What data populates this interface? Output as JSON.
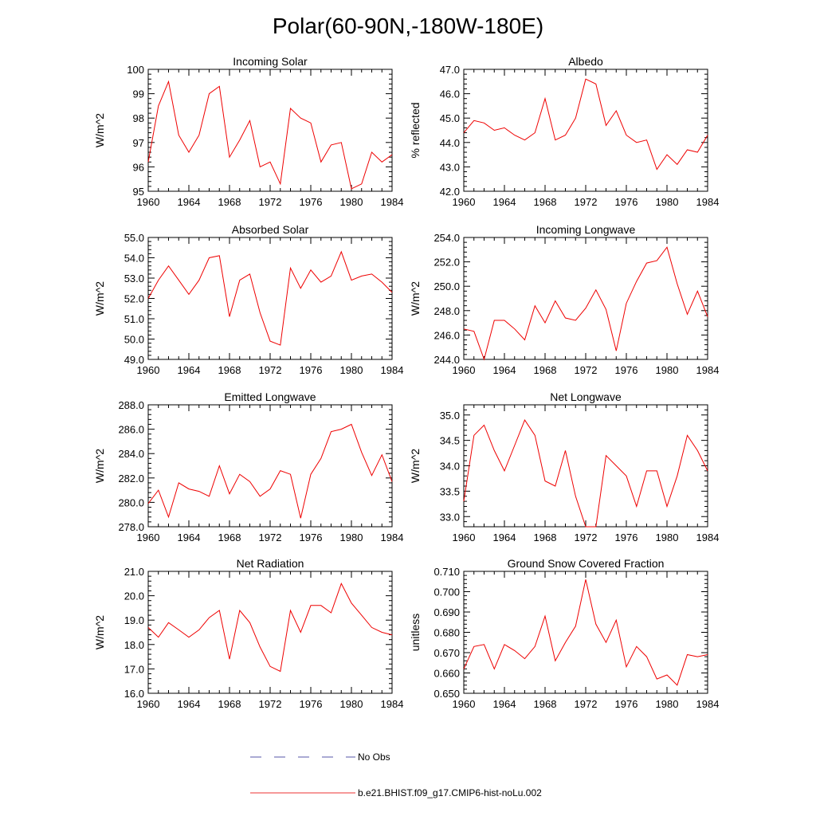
{
  "figure": {
    "title": "Polar(60-90N,-180W-180E)"
  },
  "legend": [
    {
      "label": "No Obs",
      "color": "#5555aa",
      "dashed": true
    },
    {
      "label": "b.e21.BHIST.f09_g17.CMIP6-hist-noLu.002",
      "color": "#ee3333",
      "dashed": false
    }
  ],
  "colors": {
    "series": "#ee0000",
    "obs": "#5555aa"
  },
  "chart_data": [
    {
      "type": "line",
      "title": "Incoming Solar",
      "ylabel": "W/m^2",
      "xlim": [
        1960,
        1984
      ],
      "ylim": [
        95,
        100
      ],
      "xticks": [
        1960,
        1964,
        1968,
        1972,
        1976,
        1980,
        1984
      ],
      "yticks": [
        95,
        96,
        97,
        98,
        99,
        100
      ],
      "ydecimals": 0,
      "x": [
        1960,
        1961,
        1962,
        1963,
        1964,
        1965,
        1966,
        1967,
        1968,
        1969,
        1970,
        1971,
        1972,
        1973,
        1974,
        1975,
        1976,
        1977,
        1978,
        1979,
        1980,
        1981,
        1982,
        1983,
        1984
      ],
      "y": [
        96.2,
        98.5,
        99.5,
        97.3,
        96.6,
        97.3,
        99.0,
        99.3,
        96.4,
        97.1,
        97.9,
        96.0,
        96.2,
        95.3,
        98.4,
        98.0,
        97.8,
        96.2,
        96.9,
        97.0,
        95.1,
        95.3,
        96.6,
        96.2,
        96.5
      ]
    },
    {
      "type": "line",
      "title": "Albedo",
      "ylabel": "% reflected",
      "xlim": [
        1960,
        1984
      ],
      "ylim": [
        42.0,
        47.0
      ],
      "xticks": [
        1960,
        1964,
        1968,
        1972,
        1976,
        1980,
        1984
      ],
      "yticks": [
        42.0,
        43.0,
        44.0,
        45.0,
        46.0,
        47.0
      ],
      "ydecimals": 1,
      "x": [
        1960,
        1961,
        1962,
        1963,
        1964,
        1965,
        1966,
        1967,
        1968,
        1969,
        1970,
        1971,
        1972,
        1973,
        1974,
        1975,
        1976,
        1977,
        1978,
        1979,
        1980,
        1981,
        1982,
        1983,
        1984
      ],
      "y": [
        44.4,
        44.9,
        44.8,
        44.5,
        44.6,
        44.3,
        44.1,
        44.4,
        45.8,
        44.1,
        44.3,
        45.0,
        46.6,
        46.4,
        44.7,
        45.3,
        44.3,
        44.0,
        44.1,
        42.9,
        43.5,
        43.1,
        43.7,
        43.6,
        44.3
      ]
    },
    {
      "type": "line",
      "title": "Absorbed Solar",
      "ylabel": "W/m^2",
      "xlim": [
        1960,
        1984
      ],
      "ylim": [
        49.0,
        55.0
      ],
      "xticks": [
        1960,
        1964,
        1968,
        1972,
        1976,
        1980,
        1984
      ],
      "yticks": [
        49.0,
        50.0,
        51.0,
        52.0,
        53.0,
        54.0,
        55.0
      ],
      "ydecimals": 1,
      "x": [
        1960,
        1961,
        1962,
        1963,
        1964,
        1965,
        1966,
        1967,
        1968,
        1969,
        1970,
        1971,
        1972,
        1973,
        1974,
        1975,
        1976,
        1977,
        1978,
        1979,
        1980,
        1981,
        1982,
        1983,
        1984
      ],
      "y": [
        52.0,
        52.9,
        53.6,
        52.9,
        52.2,
        52.9,
        54.0,
        54.1,
        51.1,
        52.9,
        53.2,
        51.3,
        49.9,
        49.7,
        53.5,
        52.5,
        53.4,
        52.8,
        53.1,
        54.3,
        52.9,
        53.1,
        53.2,
        52.8,
        52.3
      ]
    },
    {
      "type": "line",
      "title": "Incoming Longwave",
      "ylabel": "W/m^2",
      "xlim": [
        1960,
        1984
      ],
      "ylim": [
        244.0,
        254.0
      ],
      "xticks": [
        1960,
        1964,
        1968,
        1972,
        1976,
        1980,
        1984
      ],
      "yticks": [
        244.0,
        246.0,
        248.0,
        250.0,
        252.0,
        254.0
      ],
      "ydecimals": 1,
      "x": [
        1960,
        1961,
        1962,
        1963,
        1964,
        1965,
        1966,
        1967,
        1968,
        1969,
        1970,
        1971,
        1972,
        1973,
        1974,
        1975,
        1976,
        1977,
        1978,
        1979,
        1980,
        1981,
        1982,
        1983,
        1984
      ],
      "y": [
        246.5,
        246.3,
        244.0,
        247.2,
        247.2,
        246.5,
        245.6,
        248.4,
        247.0,
        248.8,
        247.4,
        247.2,
        248.2,
        249.7,
        248.1,
        244.7,
        248.6,
        250.4,
        251.9,
        252.1,
        253.2,
        250.2,
        247.7,
        249.6,
        247.5
      ]
    },
    {
      "type": "line",
      "title": "Emitted Longwave",
      "ylabel": "W/m^2",
      "xlim": [
        1960,
        1984
      ],
      "ylim": [
        278.0,
        288.0
      ],
      "xticks": [
        1960,
        1964,
        1968,
        1972,
        1976,
        1980,
        1984
      ],
      "yticks": [
        278.0,
        280.0,
        282.0,
        284.0,
        286.0,
        288.0
      ],
      "ydecimals": 1,
      "x": [
        1960,
        1961,
        1962,
        1963,
        1964,
        1965,
        1966,
        1967,
        1968,
        1969,
        1970,
        1971,
        1972,
        1973,
        1974,
        1975,
        1976,
        1977,
        1978,
        1979,
        1980,
        1981,
        1982,
        1983,
        1984
      ],
      "y": [
        279.9,
        281.0,
        278.8,
        281.6,
        281.1,
        280.9,
        280.5,
        283.0,
        280.7,
        282.3,
        281.7,
        280.5,
        281.1,
        282.6,
        282.3,
        278.7,
        282.3,
        283.6,
        285.8,
        286.0,
        286.4,
        284.1,
        282.2,
        283.9,
        281.7
      ]
    },
    {
      "type": "line",
      "title": "Net Longwave",
      "ylabel": "W/m^2",
      "xlim": [
        1960,
        1984
      ],
      "ylim": [
        32.8,
        35.2
      ],
      "xticks": [
        1960,
        1964,
        1968,
        1972,
        1976,
        1980,
        1984
      ],
      "yticks": [
        33.0,
        33.5,
        34.0,
        34.5,
        35.0
      ],
      "ydecimals": 1,
      "x": [
        1960,
        1961,
        1962,
        1963,
        1964,
        1965,
        1966,
        1967,
        1968,
        1969,
        1970,
        1971,
        1972,
        1973,
        1974,
        1975,
        1976,
        1977,
        1978,
        1979,
        1980,
        1981,
        1982,
        1983,
        1984
      ],
      "y": [
        33.3,
        34.6,
        34.8,
        34.3,
        33.9,
        34.4,
        34.9,
        34.6,
        33.7,
        33.6,
        34.3,
        33.4,
        32.8,
        32.8,
        34.2,
        34.0,
        33.8,
        33.2,
        33.9,
        33.9,
        33.2,
        33.8,
        34.6,
        34.3,
        33.9
      ]
    },
    {
      "type": "line",
      "title": "Net Radiation",
      "ylabel": "W/m^2",
      "xlim": [
        1960,
        1984
      ],
      "ylim": [
        16.0,
        21.0
      ],
      "xticks": [
        1960,
        1964,
        1968,
        1972,
        1976,
        1980,
        1984
      ],
      "yticks": [
        16.0,
        17.0,
        18.0,
        19.0,
        20.0,
        21.0
      ],
      "ydecimals": 1,
      "x": [
        1960,
        1961,
        1962,
        1963,
        1964,
        1965,
        1966,
        1967,
        1968,
        1969,
        1970,
        1971,
        1972,
        1973,
        1974,
        1975,
        1976,
        1977,
        1978,
        1979,
        1980,
        1981,
        1982,
        1983,
        1984
      ],
      "y": [
        18.7,
        18.3,
        18.9,
        18.6,
        18.3,
        18.6,
        19.1,
        19.4,
        17.4,
        19.4,
        18.9,
        17.9,
        17.1,
        16.9,
        19.4,
        18.5,
        19.6,
        19.6,
        19.3,
        20.5,
        19.7,
        19.2,
        18.7,
        18.5,
        18.4
      ]
    },
    {
      "type": "line",
      "title": "Ground Snow Covered Fraction",
      "ylabel": "unitless",
      "xlim": [
        1960,
        1984
      ],
      "ylim": [
        0.65,
        0.71
      ],
      "xticks": [
        1960,
        1964,
        1968,
        1972,
        1976,
        1980,
        1984
      ],
      "yticks": [
        0.65,
        0.66,
        0.67,
        0.68,
        0.69,
        0.7,
        0.71
      ],
      "ydecimals": 3,
      "x": [
        1960,
        1961,
        1962,
        1963,
        1964,
        1965,
        1966,
        1967,
        1968,
        1969,
        1970,
        1971,
        1972,
        1973,
        1974,
        1975,
        1976,
        1977,
        1978,
        1979,
        1980,
        1981,
        1982,
        1983,
        1984
      ],
      "y": [
        0.662,
        0.673,
        0.674,
        0.662,
        0.674,
        0.671,
        0.667,
        0.673,
        0.688,
        0.666,
        0.675,
        0.683,
        0.706,
        0.684,
        0.675,
        0.686,
        0.663,
        0.673,
        0.668,
        0.657,
        0.659,
        0.654,
        0.669,
        0.668,
        0.669
      ]
    }
  ]
}
